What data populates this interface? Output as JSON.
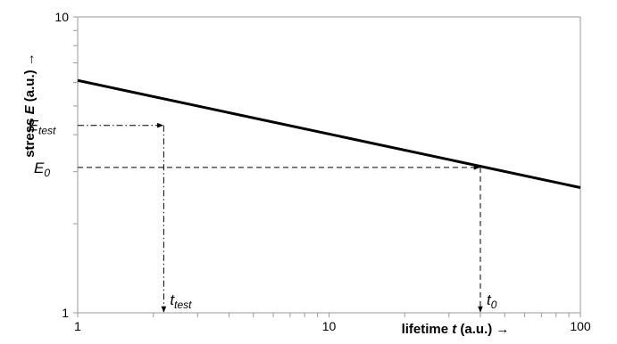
{
  "chart_data": {
    "type": "line",
    "x_scale": "log",
    "y_scale": "log",
    "xlim": [
      1,
      100
    ],
    "ylim": [
      1,
      10
    ],
    "x_tick_labels": [
      {
        "value": 1,
        "label": "1"
      },
      {
        "value": 10,
        "label": "10"
      },
      {
        "value": 100,
        "label": "100"
      }
    ],
    "y_tick_labels": [
      {
        "value": 1,
        "label": "1"
      },
      {
        "value": 10,
        "label": "10"
      }
    ],
    "xlabel": {
      "prefix": "lifetime ",
      "var": "t",
      "suffix": " (a.u.) →"
    },
    "ylabel": {
      "prefix": "stress ",
      "var": "E",
      "suffix": " (a.u.) →"
    },
    "series": [
      {
        "x": [
          1,
          100
        ],
        "y": [
          6.1,
          2.65
        ]
      }
    ],
    "annotations": {
      "test": {
        "E_symbol": "E",
        "E_sub": "test",
        "t_symbol": "t",
        "t_sub": "test",
        "x": 2.2,
        "y": 4.3,
        "style": "dash-dot"
      },
      "zero": {
        "E_symbol": "E",
        "E_sub": "0",
        "t_symbol": "t",
        "t_sub": "0",
        "x": 40,
        "y": 3.1,
        "style": "dashed"
      }
    },
    "grid": false,
    "line_color": "#000000"
  }
}
